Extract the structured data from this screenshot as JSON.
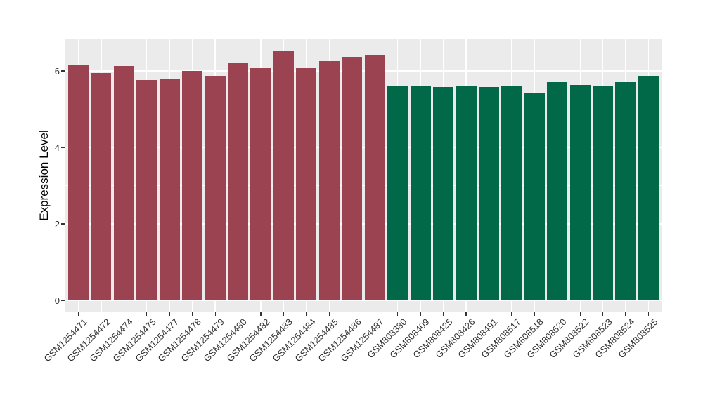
{
  "chart_data": {
    "type": "bar",
    "title": "",
    "xlabel": "",
    "ylabel": "Expression Level",
    "yticks": [
      0,
      2,
      4,
      6
    ],
    "yminor": [
      1,
      3,
      5
    ],
    "ylim": [
      -0.33,
      6.85
    ],
    "grid": true,
    "legend": false,
    "panel_background": "#EBEBEB",
    "gridline_color": "#ffffff",
    "bars": [
      {
        "label": "GSM1254471",
        "value": 6.15,
        "color": "#9B4350"
      },
      {
        "label": "GSM1254472",
        "value": 5.94,
        "color": "#9B4350"
      },
      {
        "label": "GSM1254474",
        "value": 6.13,
        "color": "#9B4350"
      },
      {
        "label": "GSM1254475",
        "value": 5.77,
        "color": "#9B4350"
      },
      {
        "label": "GSM1254477",
        "value": 5.8,
        "color": "#9B4350"
      },
      {
        "label": "GSM1254478",
        "value": 6.0,
        "color": "#9B4350"
      },
      {
        "label": "GSM1254479",
        "value": 5.88,
        "color": "#9B4350"
      },
      {
        "label": "GSM1254480",
        "value": 6.2,
        "color": "#9B4350"
      },
      {
        "label": "GSM1254482",
        "value": 6.07,
        "color": "#9B4350"
      },
      {
        "label": "GSM1254483",
        "value": 6.52,
        "color": "#9B4350"
      },
      {
        "label": "GSM1254484",
        "value": 6.07,
        "color": "#9B4350"
      },
      {
        "label": "GSM1254485",
        "value": 6.25,
        "color": "#9B4350"
      },
      {
        "label": "GSM1254486",
        "value": 6.37,
        "color": "#9B4350"
      },
      {
        "label": "GSM1254487",
        "value": 6.4,
        "color": "#9B4350"
      },
      {
        "label": "GSM808380",
        "value": 5.6,
        "color": "#016848"
      },
      {
        "label": "GSM808409",
        "value": 5.62,
        "color": "#016848"
      },
      {
        "label": "GSM808425",
        "value": 5.58,
        "color": "#016848"
      },
      {
        "label": "GSM808426",
        "value": 5.62,
        "color": "#016848"
      },
      {
        "label": "GSM808491",
        "value": 5.58,
        "color": "#016848"
      },
      {
        "label": "GSM808517",
        "value": 5.59,
        "color": "#016848"
      },
      {
        "label": "GSM808518",
        "value": 5.42,
        "color": "#016848"
      },
      {
        "label": "GSM808520",
        "value": 5.71,
        "color": "#016848"
      },
      {
        "label": "GSM808522",
        "value": 5.64,
        "color": "#016848"
      },
      {
        "label": "GSM808523",
        "value": 5.59,
        "color": "#016848"
      },
      {
        "label": "GSM808524",
        "value": 5.71,
        "color": "#016848"
      },
      {
        "label": "GSM808525",
        "value": 5.85,
        "color": "#016848"
      }
    ]
  }
}
